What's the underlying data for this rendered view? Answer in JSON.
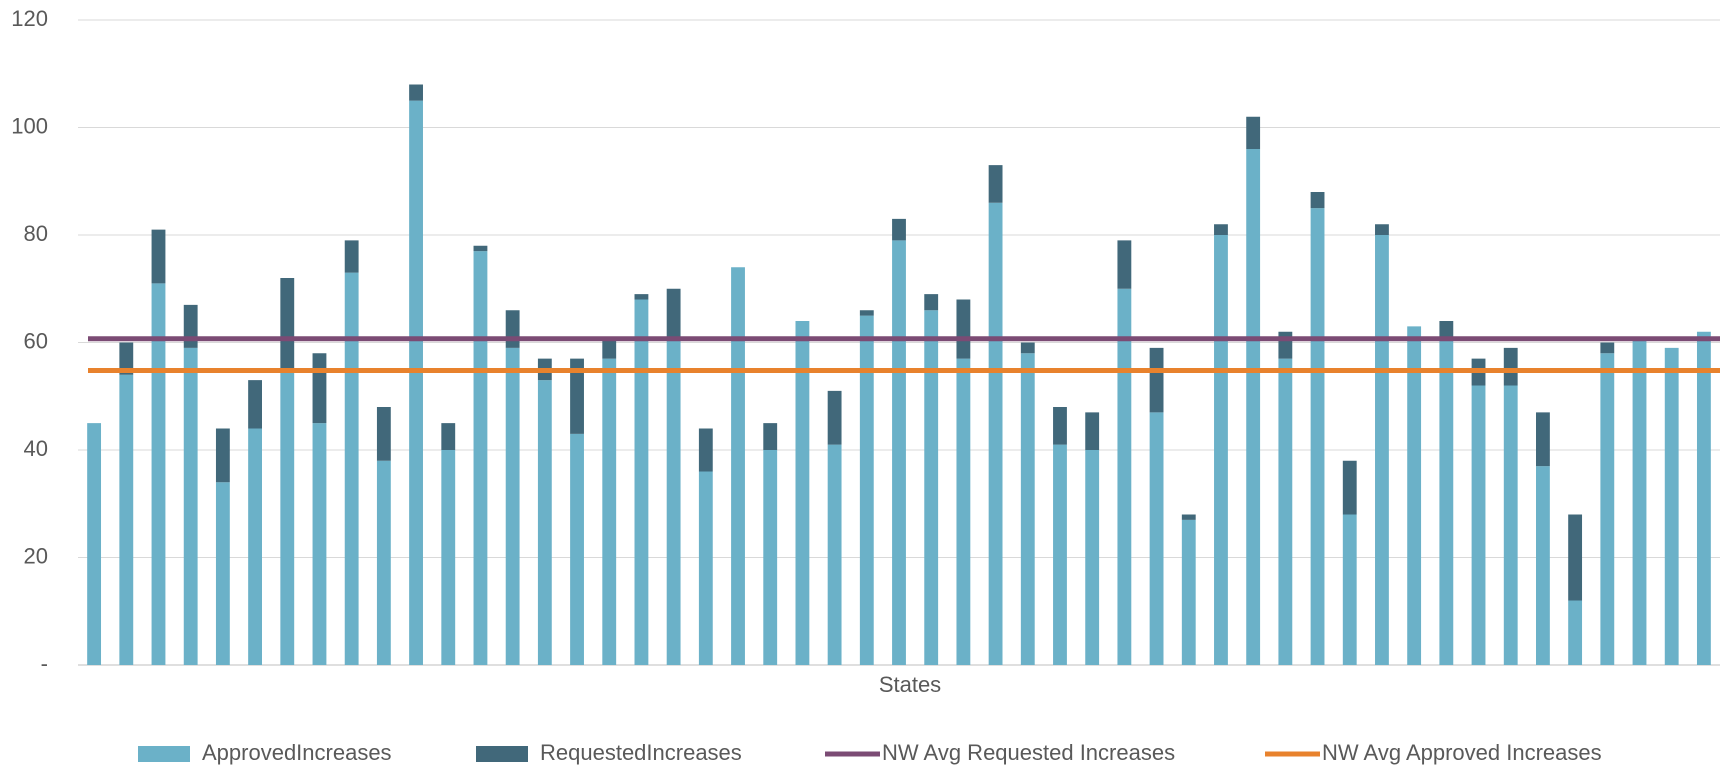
{
  "chart_data": {
    "type": "stacked-bar",
    "x_label": "States",
    "categories": [
      null,
      null,
      null,
      null,
      null,
      null,
      null,
      null,
      null,
      null,
      null,
      null,
      null,
      null,
      null,
      null,
      null,
      null,
      null,
      null,
      null,
      null,
      null,
      null,
      null,
      null,
      null,
      null,
      null,
      null,
      null,
      null,
      null,
      null,
      null,
      null,
      null,
      null,
      null,
      null,
      null,
      null,
      null,
      null,
      null,
      null,
      null,
      null,
      null,
      null,
      null
    ],
    "series": [
      {
        "name": "ApprovedIncreases",
        "color": "#6bb1c8",
        "values": [
          45,
          54,
          71,
          59,
          34,
          44,
          55,
          45,
          73,
          38,
          105,
          40,
          77,
          59,
          53,
          43,
          57,
          68,
          61,
          36,
          74,
          40,
          64,
          41,
          65,
          79,
          66,
          57,
          86,
          58,
          41,
          40,
          70,
          47,
          27,
          80,
          96,
          57,
          85,
          28,
          80,
          63,
          61,
          52,
          52,
          37,
          12,
          58,
          61,
          59,
          62
        ]
      },
      {
        "name": "RequestedIncreases",
        "color": "#41687a",
        "values": [
          0,
          6,
          10,
          8,
          10,
          9,
          17,
          13,
          6,
          10,
          3,
          5,
          1,
          7,
          4,
          14,
          4,
          1,
          9,
          8,
          0,
          5,
          0,
          10,
          1,
          4,
          3,
          11,
          7,
          2,
          7,
          7,
          9,
          12,
          1,
          2,
          6,
          5,
          3,
          10,
          2,
          0,
          3,
          5,
          7,
          10,
          16,
          2,
          0,
          0,
          0
        ]
      },
      {
        "name": "NW Avg Requested Increases",
        "type": "line",
        "color": "#7b4b74",
        "value": 60.7
      },
      {
        "name": "NW Avg Approved Increases",
        "type": "line",
        "color": "#e8822d",
        "value": 54.8
      }
    ],
    "ylim": [
      0,
      120
    ],
    "yticks": [
      {
        "value": 0,
        "label": "-"
      },
      20,
      40,
      60,
      80,
      100,
      120
    ],
    "grid": true
  }
}
